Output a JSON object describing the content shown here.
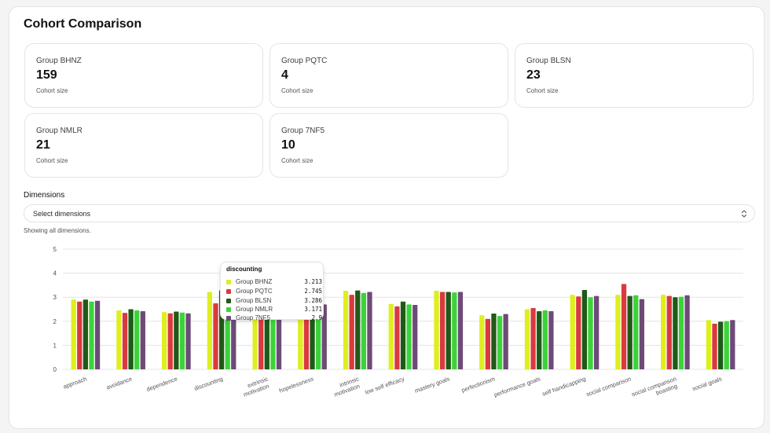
{
  "page": {
    "title": "Cohort Comparison"
  },
  "cards": [
    {
      "name": "Group BHNZ",
      "value": "159",
      "sub": "Cohort size"
    },
    {
      "name": "Group PQTC",
      "value": "4",
      "sub": "Cohort size"
    },
    {
      "name": "Group BLSN",
      "value": "23",
      "sub": "Cohort size"
    },
    {
      "name": "Group NMLR",
      "value": "21",
      "sub": "Cohort size"
    },
    {
      "name": "Group 7NF5",
      "value": "10",
      "sub": "Cohort size"
    }
  ],
  "dimensions": {
    "label": "Dimensions",
    "placeholder": "Select dimensions",
    "hint": "Showing all dimensions."
  },
  "icons": {
    "select": "chevron-up-down-icon"
  },
  "chart_data": {
    "type": "bar",
    "ylim": [
      0,
      5
    ],
    "yticks": [
      0,
      1,
      2,
      3,
      4,
      5
    ],
    "grid": true,
    "categories": [
      "approach",
      "avoidance",
      "dependence",
      "discounting",
      "extrinsic motivation",
      "hopelessness",
      "intrinsic motivation",
      "low self efficacy",
      "mastery goals",
      "perfectionism",
      "performance goals",
      "self handicapping",
      "social comparison",
      "social comparison boasting",
      "social goals"
    ],
    "category_lines": [
      [
        "approach"
      ],
      [
        "avoidance"
      ],
      [
        "dependence"
      ],
      [
        "discounting"
      ],
      [
        "extrinsic",
        "motivation"
      ],
      [
        "hopelessness"
      ],
      [
        "intrinsic",
        "motivation"
      ],
      [
        "low self efficacy"
      ],
      [
        "mastery goals"
      ],
      [
        "perfectionism"
      ],
      [
        "performance goals"
      ],
      [
        "self handicapping"
      ],
      [
        "social comparison"
      ],
      [
        "social comparison",
        "boasting"
      ],
      [
        "social goals"
      ]
    ],
    "series": [
      {
        "name": "Group BHNZ",
        "color": "#dfee1f",
        "values": [
          2.9,
          2.45,
          2.38,
          3.213,
          2.95,
          2.95,
          3.27,
          2.72,
          3.27,
          2.25,
          2.5,
          3.1,
          3.1,
          3.1,
          2.05
        ]
      },
      {
        "name": "Group PQTC",
        "color": "#d93a3f",
        "values": [
          2.82,
          2.35,
          2.33,
          2.745,
          3.1,
          2.85,
          3.1,
          2.62,
          3.22,
          2.1,
          2.55,
          3.03,
          3.55,
          3.05,
          1.9
        ]
      },
      {
        "name": "Group BLSN",
        "color": "#1f5a17",
        "values": [
          2.9,
          2.5,
          2.4,
          3.286,
          3.15,
          3.05,
          3.28,
          2.82,
          3.22,
          2.32,
          2.42,
          3.3,
          3.05,
          3.0,
          1.98
        ]
      },
      {
        "name": "Group NMLR",
        "color": "#3cd33a",
        "values": [
          2.82,
          2.45,
          2.36,
          3.171,
          3.05,
          2.75,
          3.18,
          2.7,
          3.2,
          2.22,
          2.45,
          3.0,
          3.08,
          3.02,
          2.0
        ]
      },
      {
        "name": "Group 7NF5",
        "color": "#6e4a78",
        "values": [
          2.85,
          2.42,
          2.33,
          2.9,
          3.0,
          2.7,
          3.22,
          2.68,
          3.22,
          2.3,
          2.42,
          3.05,
          2.92,
          3.08,
          2.05
        ]
      }
    ],
    "tooltip": {
      "category": "discounting",
      "rows": [
        {
          "name": "Group BHNZ",
          "value": "3.213",
          "color": "#dfee1f"
        },
        {
          "name": "Group PQTC",
          "value": "2.745",
          "color": "#d93a3f"
        },
        {
          "name": "Group BLSN",
          "value": "3.286",
          "color": "#1f5a17"
        },
        {
          "name": "Group NMLR",
          "value": "3.171",
          "color": "#3cd33a"
        },
        {
          "name": "Group 7NF5",
          "value": "2.9",
          "color": "#6e4a78"
        }
      ]
    }
  }
}
